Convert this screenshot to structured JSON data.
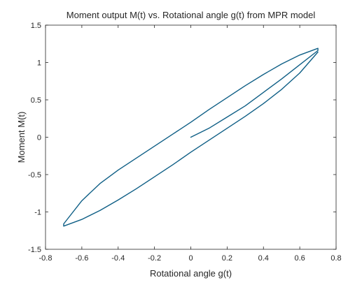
{
  "chart_data": {
    "type": "line",
    "title": "Moment output M(t) vs. Rotational angle g(t) from MPR model",
    "xlabel": "Rotational angle g(t)",
    "ylabel": "Moment  M(t)",
    "xlim": [
      -0.8,
      0.8
    ],
    "ylim": [
      -1.5,
      1.5
    ],
    "xticks": [
      -0.8,
      -0.6,
      -0.4,
      -0.2,
      0,
      0.2,
      0.4,
      0.6,
      0.8
    ],
    "yticks": [
      -1.5,
      -1,
      -0.5,
      0,
      0.5,
      1,
      1.5
    ],
    "xtick_labels": [
      "-0.8",
      "-0.6",
      "-0.4",
      "-0.2",
      "0",
      "0.2",
      "0.4",
      "0.6",
      "0.8"
    ],
    "ytick_labels": [
      "-1.5",
      "-1",
      "-0.5",
      "0",
      "0.5",
      "1",
      "1.5"
    ],
    "grid": false,
    "box": true,
    "line_color": "#0f5f86",
    "series": [
      {
        "values_x": [
          0,
          0.1,
          0.2,
          0.3,
          0.4,
          0.5,
          0.6,
          0.7,
          0.7,
          0.6,
          0.5,
          0.4,
          0.3,
          0.2,
          0.1,
          0,
          -0.1,
          -0.2,
          -0.3,
          -0.4,
          -0.5,
          -0.6,
          -0.7,
          -0.7,
          -0.6,
          -0.5,
          -0.4,
          -0.3,
          -0.2,
          -0.1,
          0,
          0.1,
          0.2,
          0.3,
          0.4,
          0.5,
          0.6,
          0.7
        ],
        "values_y": [
          0,
          0.12,
          0.27,
          0.42,
          0.6,
          0.78,
          0.97,
          1.16,
          1.19,
          1.1,
          0.98,
          0.84,
          0.69,
          0.53,
          0.37,
          0.2,
          0.04,
          -0.12,
          -0.28,
          -0.44,
          -0.62,
          -0.85,
          -1.16,
          -1.19,
          -1.1,
          -0.98,
          -0.84,
          -0.69,
          -0.53,
          -0.37,
          -0.2,
          -0.04,
          0.12,
          0.28,
          0.45,
          0.64,
          0.86,
          1.14
        ]
      }
    ]
  }
}
